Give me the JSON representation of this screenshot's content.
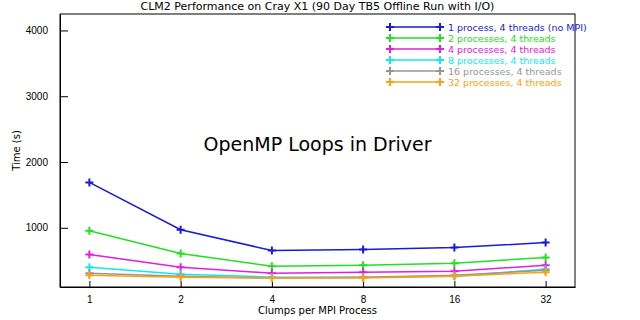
{
  "chart_data": {
    "type": "line",
    "title": "CLM2 Performance on Cray X1 (90 Day TB5 Offline Run with I/O)",
    "annotation": "OpenMP Loops in Driver",
    "x_label": "Clumps per MPI Process",
    "y_label": "Time (s)",
    "x": [
      1,
      2,
      4,
      8,
      16,
      32
    ],
    "log": "x",
    "xlim": [
      0.8,
      40
    ],
    "xticks": [
      1,
      2,
      4,
      8,
      16,
      32
    ],
    "ylim": [
      100,
      4250
    ],
    "yticks": [
      1000,
      2000,
      3000,
      4000
    ],
    "grid": false,
    "legend": "top-right",
    "marker": "plus",
    "line_style": "solid",
    "series": [
      {
        "name": "1 process, 4 threads (no MPI)",
        "color": "#1a1ad8",
        "values": [
          1690,
          970,
          655,
          670,
          700,
          775
        ]
      },
      {
        "name": "2 processes, 4 threads",
        "color": "#22e022",
        "values": [
          955,
          610,
          415,
          430,
          460,
          550
        ]
      },
      {
        "name": "4 processes, 4 threads",
        "color": "#e020e0",
        "values": [
          595,
          400,
          310,
          325,
          340,
          430
        ]
      },
      {
        "name": "8 processes, 4 threads",
        "color": "#10e8f0",
        "values": [
          400,
          295,
          250,
          250,
          265,
          370
        ]
      },
      {
        "name": "16 processes, 4 threads",
        "color": "#969696",
        "values": [
          310,
          265,
          235,
          250,
          280,
          355
        ]
      },
      {
        "name": "32 processes, 4 threads",
        "color": "#ffa010",
        "values": [
          280,
          250,
          235,
          235,
          265,
          325
        ]
      }
    ]
  }
}
